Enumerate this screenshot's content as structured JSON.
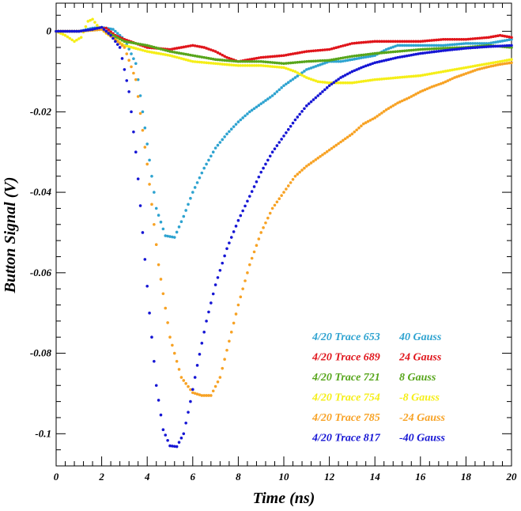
{
  "chart_data": {
    "type": "scatter",
    "xlabel": "Time (ns)",
    "ylabel": "Button Signal (V)",
    "xlim": [
      0,
      20
    ],
    "ylim": [
      -0.108,
      0.007
    ],
    "x_ticks": [
      0,
      2,
      4,
      6,
      8,
      10,
      12,
      14,
      16,
      18,
      20
    ],
    "x_tick_labels": [
      "0",
      "2",
      "4",
      "6",
      "8",
      "10",
      "12",
      "14",
      "16",
      "18",
      "20"
    ],
    "y_ticks": [
      0,
      -0.02,
      -0.04,
      -0.06,
      -0.08,
      -0.1
    ],
    "y_tick_labels": [
      "0",
      "-0.02",
      "-0.04",
      "-0.06",
      "-0.08",
      "-0.1"
    ],
    "grid": false,
    "legend_position": "bottom-right",
    "series": [
      {
        "name": "4/20 Trace 653",
        "field": "40 Gauss",
        "color": "#2ea3d0",
        "points": [
          [
            0,
            0
          ],
          [
            1,
            0
          ],
          [
            1.6,
            0.0008
          ],
          [
            2,
            0.001
          ],
          [
            2.5,
            0.0005
          ],
          [
            3,
            -0.002
          ],
          [
            3.5,
            -0.008
          ],
          [
            4,
            -0.028
          ],
          [
            4.4,
            -0.044
          ],
          [
            4.8,
            -0.0508
          ],
          [
            5.2,
            -0.0512
          ],
          [
            5.6,
            -0.046
          ],
          [
            6,
            -0.04
          ],
          [
            6.5,
            -0.034
          ],
          [
            7,
            -0.029
          ],
          [
            7.5,
            -0.0255
          ],
          [
            8,
            -0.0225
          ],
          [
            8.5,
            -0.02
          ],
          [
            9,
            -0.018
          ],
          [
            9.5,
            -0.016
          ],
          [
            10,
            -0.0135
          ],
          [
            10.5,
            -0.0115
          ],
          [
            11,
            -0.0095
          ],
          [
            11.5,
            -0.0085
          ],
          [
            12,
            -0.0075
          ],
          [
            12.5,
            -0.0075
          ],
          [
            13,
            -0.007
          ],
          [
            13.5,
            -0.0065
          ],
          [
            14,
            -0.006
          ],
          [
            14.5,
            -0.0045
          ],
          [
            15,
            -0.0035
          ],
          [
            15.5,
            -0.0035
          ],
          [
            16,
            -0.0035
          ],
          [
            17,
            -0.0035
          ],
          [
            18,
            -0.003
          ],
          [
            19,
            -0.003
          ],
          [
            20,
            -0.002
          ]
        ]
      },
      {
        "name": "4/20 Trace 689",
        "field": "24 Gauss",
        "color": "#e0151b",
        "points": [
          [
            0,
            0
          ],
          [
            1,
            0
          ],
          [
            1.8,
            0.0005
          ],
          [
            2.2,
            0.0008
          ],
          [
            2.6,
            -0.001
          ],
          [
            3,
            -0.002
          ],
          [
            3.5,
            -0.003
          ],
          [
            4,
            -0.004
          ],
          [
            5,
            -0.0045
          ],
          [
            6,
            -0.0035
          ],
          [
            6.5,
            -0.004
          ],
          [
            7,
            -0.005
          ],
          [
            7.5,
            -0.0065
          ],
          [
            8,
            -0.0075
          ],
          [
            8.5,
            -0.007
          ],
          [
            9,
            -0.0065
          ],
          [
            10,
            -0.006
          ],
          [
            11,
            -0.005
          ],
          [
            12,
            -0.0045
          ],
          [
            13,
            -0.003
          ],
          [
            14,
            -0.0025
          ],
          [
            15,
            -0.0025
          ],
          [
            16,
            -0.0025
          ],
          [
            17,
            -0.002
          ],
          [
            18,
            -0.002
          ],
          [
            19,
            -0.0015
          ],
          [
            19.5,
            -0.001
          ],
          [
            20,
            -0.0015
          ]
        ]
      },
      {
        "name": "4/20 Trace 721",
        "field": "8 Gauss",
        "color": "#57a51b",
        "points": [
          [
            0,
            0
          ],
          [
            1,
            0
          ],
          [
            2,
            0.0005
          ],
          [
            2.5,
            -0.001
          ],
          [
            3,
            -0.0025
          ],
          [
            3.5,
            -0.003
          ],
          [
            4,
            -0.0035
          ],
          [
            5,
            -0.005
          ],
          [
            6,
            -0.006
          ],
          [
            7,
            -0.007
          ],
          [
            8,
            -0.0075
          ],
          [
            9,
            -0.0075
          ],
          [
            10,
            -0.008
          ],
          [
            11,
            -0.0075
          ],
          [
            12,
            -0.0072
          ],
          [
            13,
            -0.0062
          ],
          [
            14,
            -0.0055
          ],
          [
            15,
            -0.005
          ],
          [
            16,
            -0.0045
          ],
          [
            17,
            -0.0042
          ],
          [
            18,
            -0.004
          ],
          [
            19,
            -0.0035
          ],
          [
            20,
            -0.004
          ]
        ]
      },
      {
        "name": "4/20 Trace 754",
        "field": "-8 Gauss",
        "color": "#f5ee18",
        "points": [
          [
            0,
            0
          ],
          [
            0.4,
            -0.001
          ],
          [
            0.8,
            -0.0025
          ],
          [
            1.1,
            -0.0015
          ],
          [
            1.4,
            0.0025
          ],
          [
            1.6,
            0.003
          ],
          [
            1.8,
            0.0015
          ],
          [
            2.2,
            -0.0005
          ],
          [
            2.6,
            -0.002
          ],
          [
            3,
            -0.0035
          ],
          [
            4,
            -0.005
          ],
          [
            5,
            -0.006
          ],
          [
            6,
            -0.0075
          ],
          [
            7,
            -0.008
          ],
          [
            8,
            -0.0085
          ],
          [
            9,
            -0.0085
          ],
          [
            10,
            -0.009
          ],
          [
            10.5,
            -0.01
          ],
          [
            11,
            -0.0115
          ],
          [
            11.5,
            -0.0125
          ],
          [
            12,
            -0.0128
          ],
          [
            13,
            -0.0128
          ],
          [
            14,
            -0.012
          ],
          [
            15,
            -0.0115
          ],
          [
            16,
            -0.011
          ],
          [
            17,
            -0.01
          ],
          [
            18,
            -0.009
          ],
          [
            19,
            -0.008
          ],
          [
            20,
            -0.007
          ]
        ]
      },
      {
        "name": "4/20 Trace 785",
        "field": "-24 Gauss",
        "color": "#f7a224",
        "points": [
          [
            0,
            0
          ],
          [
            1,
            0
          ],
          [
            2,
            0.0005
          ],
          [
            2.6,
            -0.002
          ],
          [
            3,
            -0.004
          ],
          [
            3.5,
            -0.012
          ],
          [
            4,
            -0.033
          ],
          [
            4.5,
            -0.058
          ],
          [
            5,
            -0.076
          ],
          [
            5.5,
            -0.086
          ],
          [
            6,
            -0.0898
          ],
          [
            6.4,
            -0.0905
          ],
          [
            6.8,
            -0.0905
          ],
          [
            7.2,
            -0.086
          ],
          [
            7.6,
            -0.077
          ],
          [
            8,
            -0.068
          ],
          [
            8.5,
            -0.058
          ],
          [
            9,
            -0.05
          ],
          [
            9.5,
            -0.044
          ],
          [
            10,
            -0.04
          ],
          [
            10.5,
            -0.036
          ],
          [
            11,
            -0.0335
          ],
          [
            11.5,
            -0.0315
          ],
          [
            12,
            -0.0295
          ],
          [
            12.5,
            -0.0275
          ],
          [
            13,
            -0.0255
          ],
          [
            13.5,
            -0.023
          ],
          [
            14,
            -0.0215
          ],
          [
            14.5,
            -0.0195
          ],
          [
            15,
            -0.0178
          ],
          [
            15.5,
            -0.0165
          ],
          [
            16,
            -0.015
          ],
          [
            16.5,
            -0.0138
          ],
          [
            17,
            -0.0128
          ],
          [
            17.5,
            -0.0115
          ],
          [
            18,
            -0.0105
          ],
          [
            18.5,
            -0.0095
          ],
          [
            19,
            -0.0088
          ],
          [
            19.5,
            -0.0082
          ],
          [
            20,
            -0.0078
          ]
        ]
      },
      {
        "name": "4/20 Trace 817",
        "field": "-40 Gauss",
        "color": "#1616d4",
        "points": [
          [
            0,
            0
          ],
          [
            1,
            0
          ],
          [
            1.6,
            0.0005
          ],
          [
            2,
            0.001
          ],
          [
            2.4,
            -0.001
          ],
          [
            2.8,
            -0.004
          ],
          [
            3.2,
            -0.015
          ],
          [
            3.5,
            -0.03
          ],
          [
            3.8,
            -0.05
          ],
          [
            4.1,
            -0.07
          ],
          [
            4.4,
            -0.088
          ],
          [
            4.7,
            -0.099
          ],
          [
            5,
            -0.103
          ],
          [
            5.3,
            -0.1032
          ],
          [
            5.6,
            -0.1
          ],
          [
            5.9,
            -0.092
          ],
          [
            6.2,
            -0.083
          ],
          [
            6.6,
            -0.072
          ],
          [
            7,
            -0.063
          ],
          [
            7.5,
            -0.054
          ],
          [
            8,
            -0.047
          ],
          [
            8.5,
            -0.041
          ],
          [
            9,
            -0.035
          ],
          [
            9.5,
            -0.03
          ],
          [
            10,
            -0.026
          ],
          [
            10.5,
            -0.022
          ],
          [
            11,
            -0.0185
          ],
          [
            11.5,
            -0.016
          ],
          [
            12,
            -0.0135
          ],
          [
            12.5,
            -0.0115
          ],
          [
            13,
            -0.01
          ],
          [
            13.5,
            -0.0088
          ],
          [
            14,
            -0.0078
          ],
          [
            15,
            -0.0065
          ],
          [
            16,
            -0.0055
          ],
          [
            17,
            -0.0048
          ],
          [
            18,
            -0.0042
          ],
          [
            19,
            -0.0038
          ],
          [
            20,
            -0.0035
          ]
        ]
      }
    ]
  }
}
